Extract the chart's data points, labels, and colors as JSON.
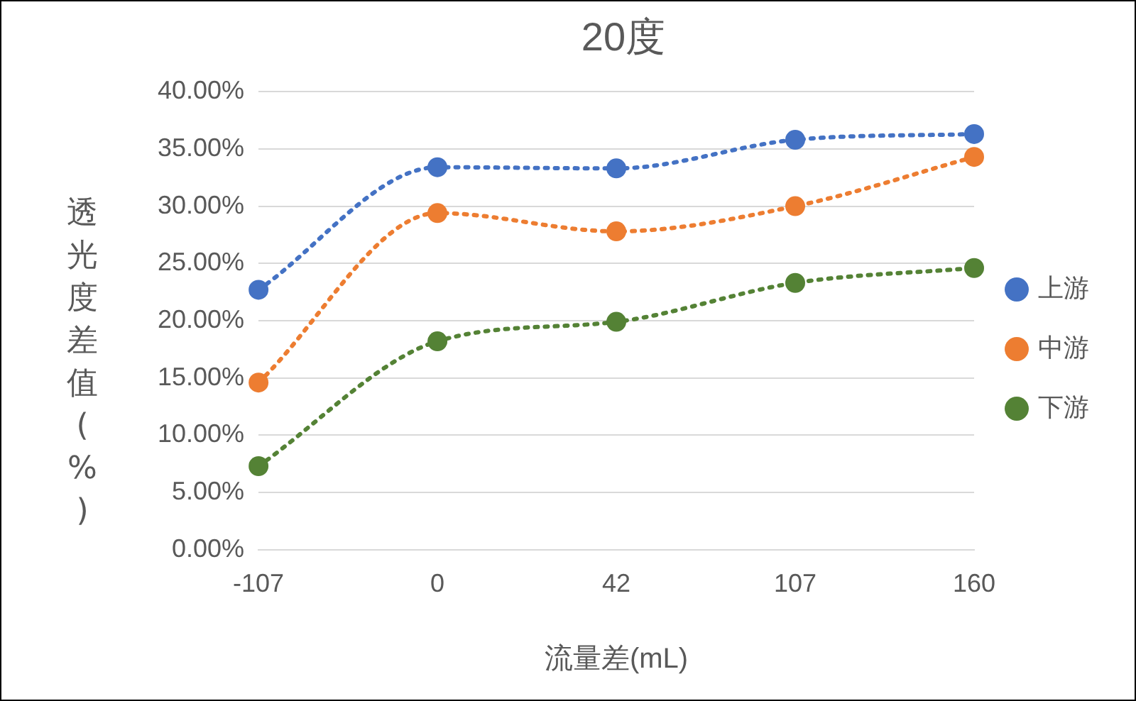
{
  "chart_data": {
    "type": "line",
    "title": "20度",
    "xlabel": "流量差(mL)",
    "ylabel": "透光度差值(%)",
    "categories": [
      "-107",
      "0",
      "42",
      "107",
      "160"
    ],
    "series": [
      {
        "name": "上游",
        "color": "#4472c4",
        "values": [
          22.7,
          33.4,
          33.3,
          35.8,
          36.3
        ]
      },
      {
        "name": "中游",
        "color": "#ed7d31",
        "values": [
          14.6,
          29.4,
          27.8,
          30.0,
          34.3
        ]
      },
      {
        "name": "下游",
        "color": "#548235",
        "values": [
          7.3,
          18.2,
          19.9,
          23.3,
          24.6
        ]
      }
    ],
    "ylim": [
      0,
      40
    ],
    "yticks": [
      {
        "value": 0,
        "label": "0.00%"
      },
      {
        "value": 5,
        "label": "5.00%"
      },
      {
        "value": 10,
        "label": "10.00%"
      },
      {
        "value": 15,
        "label": "15.00%"
      },
      {
        "value": 20,
        "label": "20.00%"
      },
      {
        "value": 25,
        "label": "25.00%"
      },
      {
        "value": 30,
        "label": "30.00%"
      },
      {
        "value": 35,
        "label": "35.00%"
      },
      {
        "value": 40,
        "label": "40.00%"
      }
    ],
    "grid": "y",
    "legend": "right",
    "marker": "circle",
    "line_style": "dotted"
  }
}
